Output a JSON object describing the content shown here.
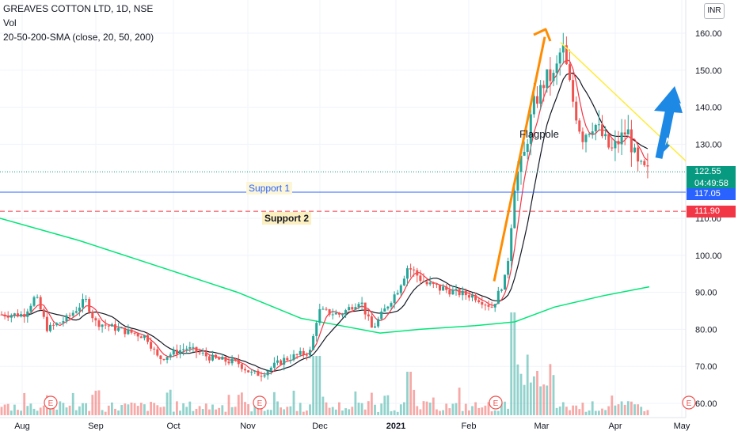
{
  "header": {
    "title": "GREAVES COTTON LTD, 1D, NSE",
    "vol_label": "Vol",
    "sma_label": "20-50-200-SMA (close, 20, 50, 200)",
    "currency": "INR"
  },
  "chart_data": {
    "type": "candlestick",
    "symbol": "GREAVES COTTON LTD",
    "interval": "1D",
    "exchange": "NSE",
    "y_ticks": [
      "160.00",
      "150.00",
      "140.00",
      "130.00",
      "110.00",
      "100.00",
      "90.00",
      "80.00",
      "70.00",
      "60.00"
    ],
    "x_ticks": [
      "Aug",
      "Sep",
      "Oct",
      "Nov",
      "Dec",
      "2021",
      "Feb",
      "Mar",
      "Apr",
      "May"
    ],
    "current_price": "122.55",
    "countdown": "04:49:58",
    "support_levels": [
      {
        "label": "Support 1",
        "value": "117.05",
        "color": "#2962ff"
      },
      {
        "label": "Support 2",
        "value": "111.90",
        "color": "#f23645"
      }
    ],
    "annotations": [
      "Flagpole"
    ],
    "earnings_marker": "E",
    "monthly_closes": [
      {
        "x": "Aug",
        "y": 84
      },
      {
        "x": "Sep",
        "y": 82
      },
      {
        "x": "Oct",
        "y": 75
      },
      {
        "x": "Nov",
        "y": 68
      },
      {
        "x": "Dec",
        "y": 85
      },
      {
        "x": "2021",
        "y": 90
      },
      {
        "x": "Feb",
        "y": 88
      },
      {
        "x": "Mar",
        "y": 150
      },
      {
        "x": "Apr",
        "y": 130
      }
    ],
    "colors": {
      "up": "#26a69a",
      "down": "#ef5350",
      "sma20": "#f23645",
      "sma50": "#131722",
      "sma200": "#00e676",
      "flagpole_arrow": "#ff8c00",
      "trendline": "#ffeb3b",
      "breakout_arrow": "#1e88e5"
    }
  }
}
